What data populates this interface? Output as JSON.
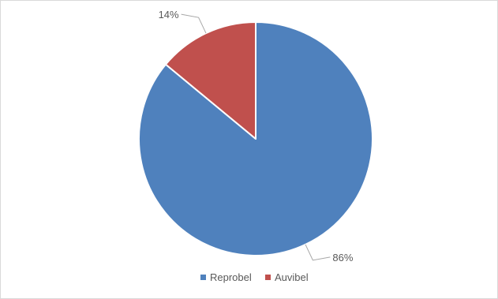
{
  "chart_data": {
    "type": "pie",
    "categories": [
      "Reprobel",
      "Auvibel"
    ],
    "values": [
      86,
      14
    ],
    "labels": [
      "86%",
      "14%"
    ],
    "colors": [
      "#4f81bd",
      "#c0504d"
    ],
    "start_angle": "top",
    "direction": "clockwise",
    "legend_position": "bottom"
  }
}
